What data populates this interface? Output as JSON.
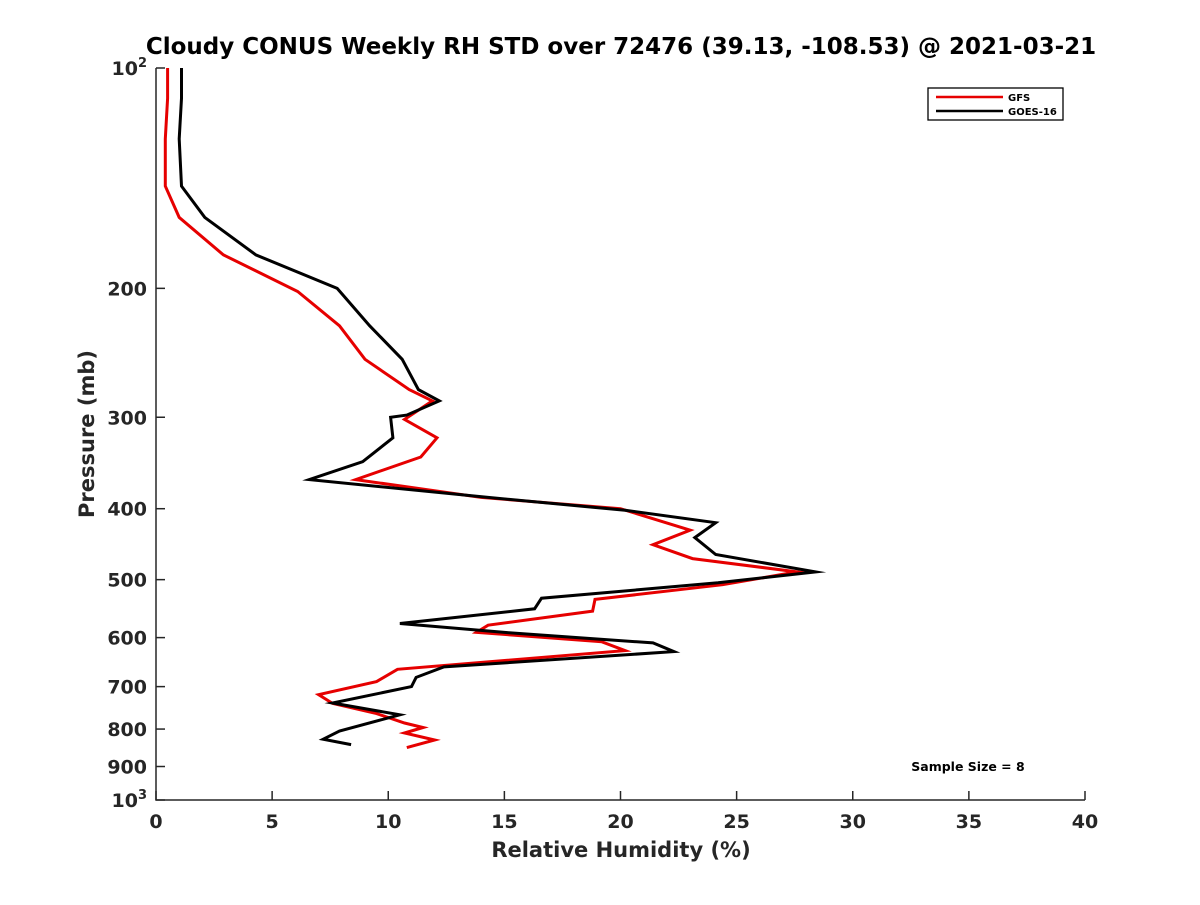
{
  "chart_data": {
    "type": "line",
    "title": "Cloudy CONUS Weekly RH STD over 72476 (39.13, -108.53) @ 2021-03-21",
    "xlabel": "Relative Humidity (%)",
    "ylabel": "Pressure (mb)",
    "xlim": [
      0,
      40
    ],
    "ylim": [
      100,
      1000
    ],
    "y_scale": "log",
    "y_reversed": true,
    "grid": false,
    "legend_position": "top-right",
    "x_ticks": [
      0,
      5,
      10,
      15,
      20,
      25,
      30,
      35,
      40
    ],
    "x_tick_labels": [
      "0",
      "5",
      "10",
      "15",
      "20",
      "25",
      "30",
      "35",
      "40"
    ],
    "y_ticks": [
      100,
      200,
      300,
      400,
      500,
      600,
      700,
      800,
      900,
      1000
    ],
    "y_tick_labels": [
      {
        "base": "10",
        "sup": "2"
      },
      {
        "base": "200",
        "sup": ""
      },
      {
        "base": "300",
        "sup": ""
      },
      {
        "base": "400",
        "sup": ""
      },
      {
        "base": "500",
        "sup": ""
      },
      {
        "base": "600",
        "sup": ""
      },
      {
        "base": "700",
        "sup": ""
      },
      {
        "base": "800",
        "sup": ""
      },
      {
        "base": "900",
        "sup": ""
      },
      {
        "base": "10",
        "sup": "3"
      }
    ],
    "annotation": "Sample Size = 8",
    "series": [
      {
        "name": "GFS",
        "color": "#e60000",
        "x": [
          0.5,
          0.5,
          0.4,
          0.4,
          1.0,
          2.9,
          6.1,
          7.9,
          9.0,
          10.9,
          11.9,
          10.7,
          12.1,
          11.4,
          8.6,
          14.0,
          20.0,
          23.0,
          21.4,
          23.1,
          27.6,
          24.4,
          18.9,
          18.8,
          14.3,
          13.8,
          19.2,
          20.2,
          10.4,
          9.5,
          7.0,
          7.6,
          9.5,
          10.7,
          11.5,
          10.7,
          12.0,
          10.8
        ],
        "y": [
          100,
          110,
          125,
          145,
          160,
          180,
          202,
          225,
          250,
          275,
          285,
          302,
          320,
          340,
          365,
          386,
          400,
          428,
          448,
          468,
          488,
          508,
          532,
          552,
          577,
          590,
          608,
          625,
          663,
          689,
          718,
          738,
          762,
          785,
          796,
          810,
          828,
          848
        ]
      },
      {
        "name": "GOES-16",
        "color": "#000000",
        "x": [
          1.1,
          1.1,
          1.0,
          1.1,
          2.1,
          4.3,
          7.8,
          9.2,
          10.6,
          11.3,
          12.2,
          10.8,
          10.1,
          10.2,
          8.9,
          6.6,
          14.3,
          20.2,
          24.1,
          23.2,
          24.1,
          28.4,
          24.2,
          16.6,
          16.3,
          10.5,
          15.2,
          21.4,
          22.3,
          12.4,
          11.2,
          11.0,
          7.6,
          10.5,
          7.9,
          7.2,
          8.4
        ],
        "y": [
          100,
          110,
          125,
          145,
          160,
          180,
          200,
          225,
          250,
          275,
          285,
          298,
          300,
          320,
          345,
          365,
          386,
          402,
          418,
          438,
          462,
          488,
          505,
          530,
          548,
          574,
          591,
          610,
          627,
          658,
          680,
          700,
          737,
          765,
          805,
          826,
          840
        ]
      }
    ]
  }
}
